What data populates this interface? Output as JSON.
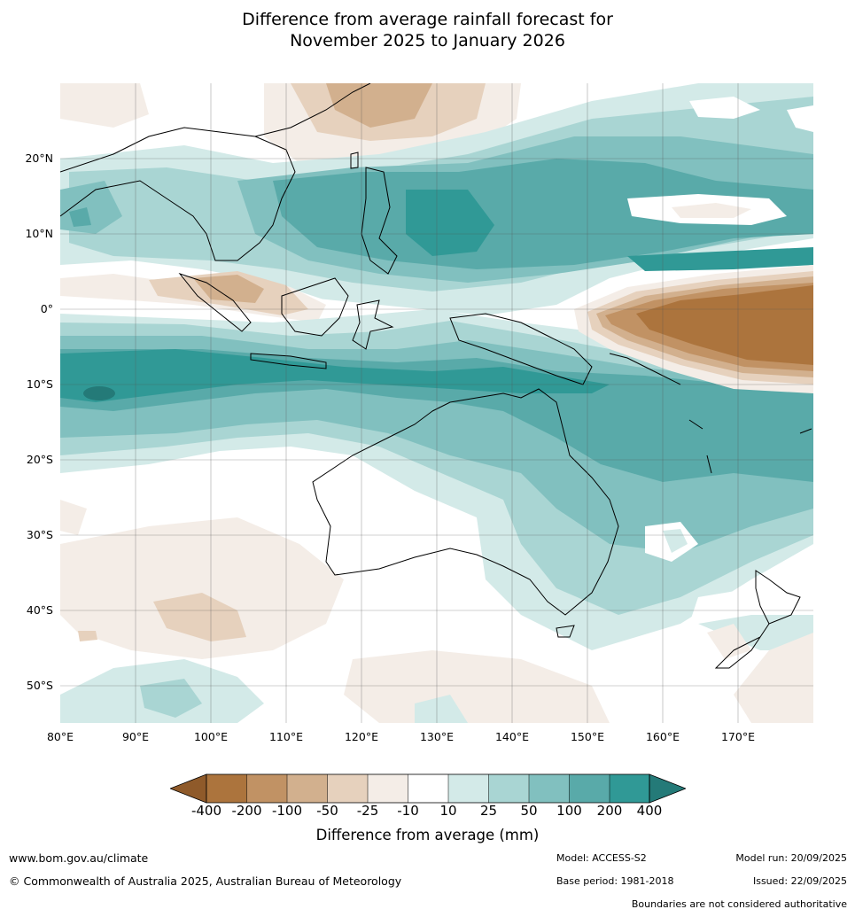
{
  "title": {
    "line1": "Difference from average rainfall forecast for",
    "line2": "November 2025 to January 2026"
  },
  "map": {
    "region": "Maritime Continent, Australia and south-west Pacific",
    "lat_labels": [
      "20°N",
      "10°N",
      "0°",
      "10°S",
      "20°S",
      "30°S",
      "40°S",
      "50°S"
    ],
    "lon_labels": [
      "80°E",
      "90°E",
      "100°E",
      "110°E",
      "120°E",
      "130°E",
      "140°E",
      "150°E",
      "160°E",
      "170°E"
    ],
    "lat_values": [
      20,
      10,
      0,
      -10,
      -20,
      -30,
      -40,
      -50
    ],
    "lon_values": [
      80,
      90,
      100,
      110,
      120,
      130,
      140,
      150,
      160,
      170
    ],
    "extent": {
      "lon_min": 80,
      "lon_max": 180,
      "lat_min": -55,
      "lat_max": 30
    }
  },
  "colorbar": {
    "title": "Difference from average (mm)",
    "tick_labels": [
      "-400",
      "-200",
      "-100",
      "-50",
      "-25",
      "-10",
      "10",
      "25",
      "50",
      "100",
      "200",
      "400"
    ],
    "colors": {
      "lt_m400": "#8f5a2a",
      "m400_m200": "#ac743d",
      "m200_m100": "#c19264",
      "m100_m50": "#d2b08e",
      "m50_m25": "#e6d1bd",
      "m25_m10": "#f4ede7",
      "m10_10": "#ffffff",
      "10_25": "#d3eae8",
      "25_50": "#a9d5d3",
      "50_100": "#81c0bf",
      "100_200": "#59aaa9",
      "200_400": "#309996",
      "gt_400": "#247a78"
    }
  },
  "footer": {
    "website": "www.bom.gov.au/climate",
    "copyright": "© Commonwealth of Australia 2025, Australian Bureau of Meteorology",
    "model": "Model: ACCESS-S2",
    "base_period": "Base period: 1981-2018",
    "model_run": "Model run: 20/09/2025",
    "issued": "Issued: 22/09/2025",
    "boundaries": "Boundaries are not considered authoritative"
  }
}
